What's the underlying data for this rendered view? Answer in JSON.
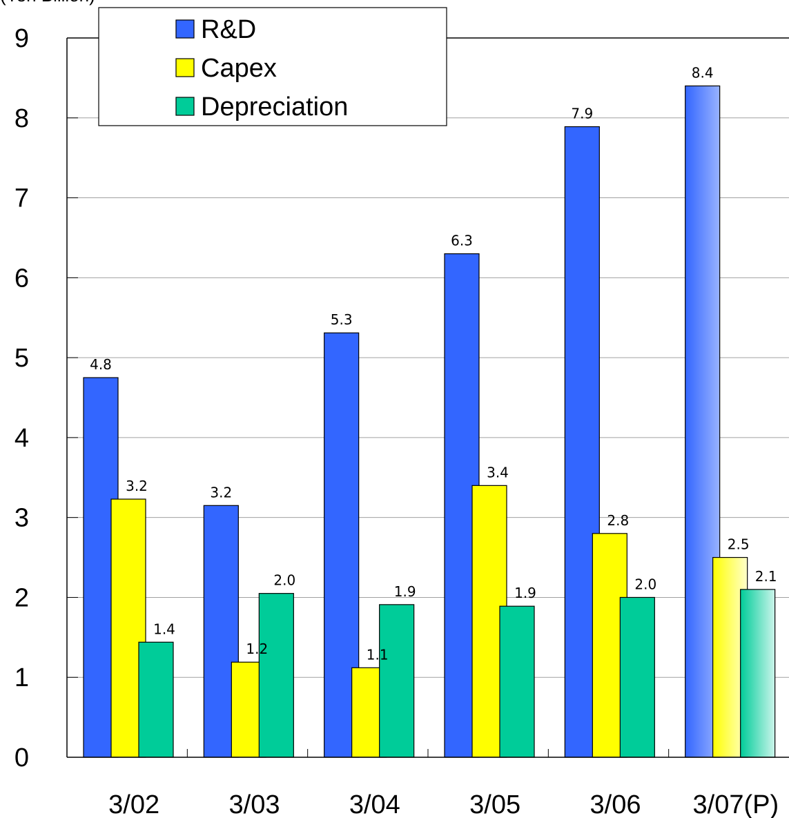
{
  "chart_data": {
    "type": "bar",
    "unit_label": "(Yen Billion)",
    "categories": [
      "3/02",
      "3/03",
      "3/04",
      "3/05",
      "3/06",
      "3/07(P)"
    ],
    "series": [
      {
        "name": "R&D",
        "values": [
          4.75,
          3.15,
          5.31,
          6.3,
          7.89,
          8.4
        ],
        "labels": [
          "4.8",
          "3.2",
          "5.3",
          "6.3",
          "7.9",
          "8.4"
        ],
        "color": "#3366ff"
      },
      {
        "name": "Capex",
        "values": [
          3.23,
          1.19,
          1.12,
          3.4,
          2.8,
          2.5
        ],
        "labels": [
          "3.2",
          "1.2",
          "1.1",
          "3.4",
          "2.8",
          "2.5"
        ],
        "color": "#ffff00"
      },
      {
        "name": "Depreciation",
        "values": [
          1.44,
          2.05,
          1.91,
          1.89,
          2.0,
          2.1
        ],
        "labels": [
          "1.4",
          "2.0",
          "1.9",
          "1.9",
          "2.0",
          "2.1"
        ],
        "color": "#00cc99"
      }
    ],
    "projected_category": "3/07(P)",
    "ylim": [
      0,
      9
    ],
    "yticks": [
      "0",
      "1",
      "2",
      "3",
      "4",
      "5",
      "6",
      "7",
      "8",
      "9"
    ],
    "grid": true,
    "legend": "top-left"
  }
}
